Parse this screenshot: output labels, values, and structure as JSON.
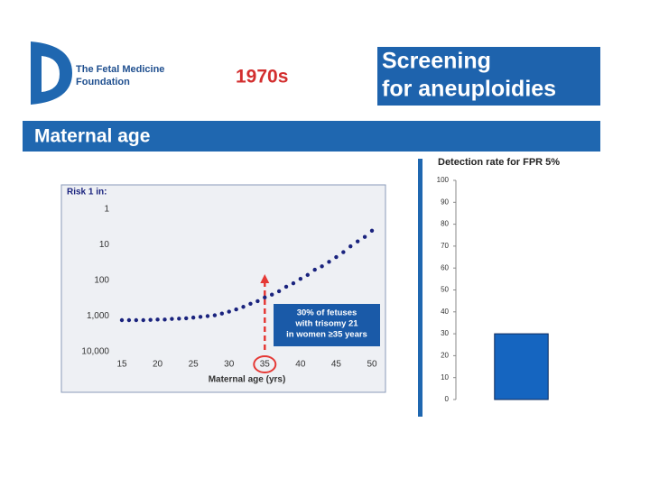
{
  "header": {
    "logo_lines": [
      "The Fetal Medicine",
      "Foundation"
    ],
    "era": "1970s",
    "title_lines": [
      "Screening",
      "for aneuploidies"
    ],
    "section": "Maternal age"
  },
  "chart_data": [
    {
      "type": "scatter",
      "ylabel": "Risk 1 in:",
      "xlabel": "Maternal age (yrs)",
      "color": "#1a237e",
      "y_scale": "log",
      "x": [
        15,
        16,
        17,
        18,
        19,
        20,
        21,
        22,
        23,
        24,
        25,
        26,
        27,
        28,
        29,
        30,
        31,
        32,
        33,
        34,
        35,
        36,
        37,
        38,
        39,
        40,
        41,
        42,
        43,
        44,
        45,
        46,
        47,
        48,
        49,
        50
      ],
      "values": [
        1300,
        1300,
        1300,
        1300,
        1280,
        1250,
        1250,
        1200,
        1180,
        1150,
        1100,
        1050,
        1000,
        950,
        850,
        750,
        650,
        550,
        450,
        380,
        300,
        250,
        200,
        150,
        120,
        90,
        70,
        50,
        40,
        30,
        22,
        16,
        11,
        8,
        6,
        4
      ],
      "xlim": [
        15,
        50
      ],
      "xticks": [
        15,
        20,
        25,
        30,
        35,
        40,
        45,
        50
      ],
      "ylim": [
        10000,
        1
      ],
      "yticks": [
        1,
        10,
        100,
        {
          "value": 1000,
          "label": "1,000"
        },
        {
          "value": 10000,
          "label": "10,000"
        }
      ],
      "highlight_x": 35,
      "highlight_color": "#e53935",
      "annotation": [
        "30% of fetuses",
        "with trisomy 21",
        "in women ≥35 years"
      ]
    },
    {
      "type": "bar",
      "title": "Detection rate for FPR 5%",
      "categories": [
        null
      ],
      "values": [
        30
      ],
      "color": "#1565c0",
      "ylim": [
        0,
        100
      ],
      "yticks": [
        0,
        10,
        20,
        30,
        40,
        50,
        60,
        70,
        80,
        90,
        100
      ]
    }
  ]
}
